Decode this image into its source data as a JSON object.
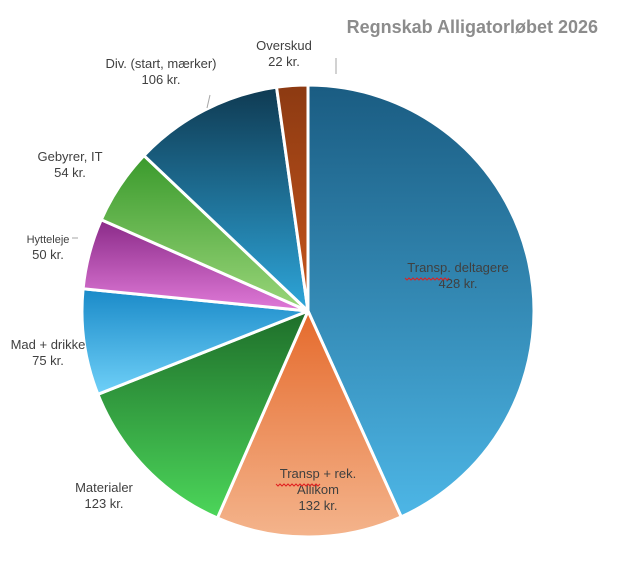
{
  "chart_data": {
    "type": "pie",
    "title": "Regnskab Alligatorløbet 2026",
    "currency_suffix": "kr.",
    "slices": [
      {
        "label": "Transp. deltagere",
        "value": 428,
        "color_dark": "#1a5c82",
        "color_light": "#4db6e6"
      },
      {
        "label": "Transp + rek. Allikom",
        "label_lines": [
          "Transp + rek.",
          "Allikom"
        ],
        "value": 132,
        "color_dark": "#e56a2c",
        "color_light": "#f4b48c"
      },
      {
        "label": "Materialer",
        "value": 123,
        "color_dark": "#1e6e2a",
        "color_light": "#4cd65a"
      },
      {
        "label": "Mad + drikke",
        "value": 75,
        "color_dark": "#1a8ac8",
        "color_light": "#6fd0f8"
      },
      {
        "label": "Hytteleje",
        "value": 50,
        "color_dark": "#8a2a88",
        "color_light": "#e07ad8"
      },
      {
        "label": "Gebyrer, IT",
        "value": 54,
        "color_dark": "#3a9a2c",
        "color_light": "#9ad67a"
      },
      {
        "label": "Div. (start, mærker)",
        "value": 106,
        "color_dark": "#0f3a52",
        "color_light": "#2ea6da"
      },
      {
        "label": "Overskud",
        "value": 22,
        "color_dark": "#8c3a12",
        "color_light": "#c8561c"
      }
    ],
    "legend": "none"
  }
}
